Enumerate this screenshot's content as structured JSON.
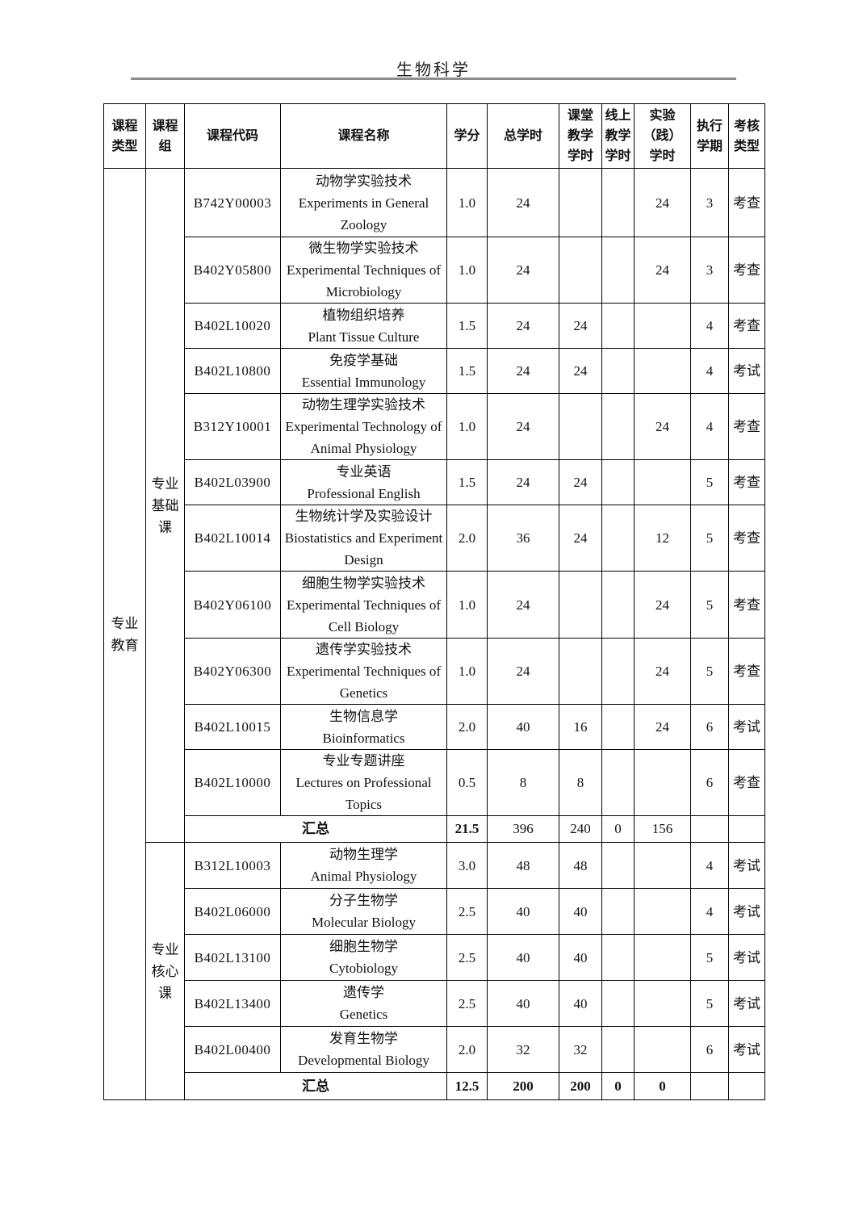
{
  "page": {
    "title": "生物科学"
  },
  "table": {
    "headers": [
      "课程\n类型",
      "课程\n组",
      "课程代码",
      "课程名称",
      "学分",
      "总学时",
      "课堂\n教学\n学时",
      "线上\n教学\n学时",
      "实验\n（践）\n学时",
      "执行\n学期",
      "考核\n类型"
    ],
    "course_type": "专业教育",
    "groups": [
      {
        "label": "专业基础课",
        "courses": [
          {
            "code": "B742Y00003",
            "name_zh": "动物学实验技术",
            "name_en": "Experiments in General Zoology",
            "credits": "1.0",
            "total_hours": "24",
            "classroom_hours": "",
            "online_hours": "",
            "practice_hours": "24",
            "semester": "3",
            "assessment": "考查"
          },
          {
            "code": "B402Y05800",
            "name_zh": "微生物学实验技术",
            "name_en": "Experimental Techniques of Microbiology",
            "credits": "1.0",
            "total_hours": "24",
            "classroom_hours": "",
            "online_hours": "",
            "practice_hours": "24",
            "semester": "3",
            "assessment": "考查"
          },
          {
            "code": "B402L10020",
            "name_zh": "植物组织培养",
            "name_en": "Plant Tissue Culture",
            "credits": "1.5",
            "total_hours": "24",
            "classroom_hours": "24",
            "online_hours": "",
            "practice_hours": "",
            "semester": "4",
            "assessment": "考查"
          },
          {
            "code": "B402L10800",
            "name_zh": "免疫学基础",
            "name_en": "Essential Immunology",
            "credits": "1.5",
            "total_hours": "24",
            "classroom_hours": "24",
            "online_hours": "",
            "practice_hours": "",
            "semester": "4",
            "assessment": "考试"
          },
          {
            "code": "B312Y10001",
            "name_zh": "动物生理学实验技术",
            "name_en": "Experimental Technology of Animal Physiology",
            "credits": "1.0",
            "total_hours": "24",
            "classroom_hours": "",
            "online_hours": "",
            "practice_hours": "24",
            "semester": "4",
            "assessment": "考查"
          },
          {
            "code": "B402L03900",
            "name_zh": "专业英语",
            "name_en": "Professional English",
            "credits": "1.5",
            "total_hours": "24",
            "classroom_hours": "24",
            "online_hours": "",
            "practice_hours": "",
            "semester": "5",
            "assessment": "考查"
          },
          {
            "code": "B402L10014",
            "name_zh": "生物统计学及实验设计",
            "name_en": "Biostatistics and Experiment Design",
            "credits": "2.0",
            "total_hours": "36",
            "classroom_hours": "24",
            "online_hours": "",
            "practice_hours": "12",
            "semester": "5",
            "assessment": "考查"
          },
          {
            "code": "B402Y06100",
            "name_zh": "细胞生物学实验技术",
            "name_en": "Experimental Techniques of Cell Biology",
            "credits": "1.0",
            "total_hours": "24",
            "classroom_hours": "",
            "online_hours": "",
            "practice_hours": "24",
            "semester": "5",
            "assessment": "考查"
          },
          {
            "code": "B402Y06300",
            "name_zh": "遗传学实验技术",
            "name_en": "Experimental Techniques of Genetics",
            "credits": "1.0",
            "total_hours": "24",
            "classroom_hours": "",
            "online_hours": "",
            "practice_hours": "24",
            "semester": "5",
            "assessment": "考查"
          },
          {
            "code": "B402L10015",
            "name_zh": "生物信息学",
            "name_en": "Bioinformatics",
            "credits": "2.0",
            "total_hours": "40",
            "classroom_hours": "16",
            "online_hours": "",
            "practice_hours": "24",
            "semester": "6",
            "assessment": "考试"
          },
          {
            "code": "B402L10000",
            "name_zh": "专业专题讲座",
            "name_en": "Lectures on Professional Topics",
            "credits": "0.5",
            "total_hours": "8",
            "classroom_hours": "8",
            "online_hours": "",
            "practice_hours": "",
            "semester": "6",
            "assessment": "考查"
          }
        ],
        "summary": {
          "label": "汇总",
          "credits": "21.5",
          "total_hours": "396",
          "classroom_hours": "240",
          "online_hours": "0",
          "practice_hours": "156",
          "semester": "",
          "assessment": ""
        }
      },
      {
        "label": "专业核心课",
        "courses": [
          {
            "code": "B312L10003",
            "name_zh": "动物生理学",
            "name_en": "Animal Physiology",
            "credits": "3.0",
            "total_hours": "48",
            "classroom_hours": "48",
            "online_hours": "",
            "practice_hours": "",
            "semester": "4",
            "assessment": "考试"
          },
          {
            "code": "B402L06000",
            "name_zh": "分子生物学",
            "name_en": "Molecular Biology",
            "credits": "2.5",
            "total_hours": "40",
            "classroom_hours": "40",
            "online_hours": "",
            "practice_hours": "",
            "semester": "4",
            "assessment": "考试"
          },
          {
            "code": "B402L13100",
            "name_zh": "细胞生物学",
            "name_en": "Cytobiology",
            "credits": "2.5",
            "total_hours": "40",
            "classroom_hours": "40",
            "online_hours": "",
            "practice_hours": "",
            "semester": "5",
            "assessment": "考试"
          },
          {
            "code": "B402L13400",
            "name_zh": "遗传学",
            "name_en": "Genetics",
            "credits": "2.5",
            "total_hours": "40",
            "classroom_hours": "40",
            "online_hours": "",
            "practice_hours": "",
            "semester": "5",
            "assessment": "考试"
          },
          {
            "code": "B402L00400",
            "name_zh": "发育生物学",
            "name_en": "Developmental Biology",
            "credits": "2.0",
            "total_hours": "32",
            "classroom_hours": "32",
            "online_hours": "",
            "practice_hours": "",
            "semester": "6",
            "assessment": "考试"
          }
        ],
        "summary": {
          "label": "汇总",
          "credits": "12.5",
          "total_hours": "200",
          "classroom_hours": "200",
          "online_hours": "0",
          "practice_hours": "0",
          "semester": "",
          "assessment": ""
        }
      }
    ]
  }
}
